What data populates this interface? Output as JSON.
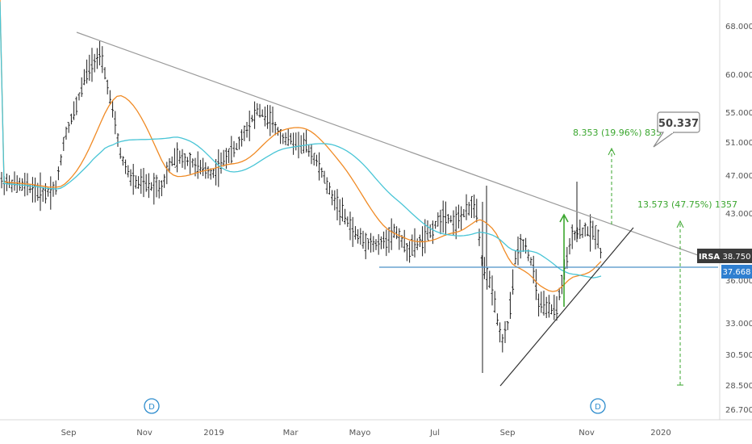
{
  "chart_data": {
    "type": "ohlc",
    "symbol": "IRSA",
    "price_axis": {
      "ticks": [
        "68.000",
        "60.000",
        "55.000",
        "51.000",
        "47.000",
        "43.000",
        "38.750",
        "37.668",
        "36.000",
        "33.000",
        "30.500",
        "28.500",
        "26.700"
      ],
      "tick_values": [
        68.0,
        60.0,
        55.0,
        51.0,
        47.0,
        43.0,
        36.0,
        33.0,
        30.5,
        28.5,
        26.7
      ],
      "range": [
        25.6,
        75.5
      ]
    },
    "time_axis": {
      "ticks": [
        "Sep",
        "Nov",
        "2019",
        "Mar",
        "Mayo",
        "Jul",
        "Sep",
        "Nov",
        "2020"
      ],
      "range": [
        "2018-08-01",
        "2020-03-15"
      ]
    },
    "last_price": {
      "label": "IRSA",
      "value": "38.750"
    },
    "support_level": {
      "value": "37.668"
    },
    "annotations": {
      "callout": "50.337",
      "measure_upper": "8.353 (19.96%) 8353",
      "measure_lower": "13.573 (47.75%) 1357",
      "event_marker": "D"
    },
    "series": [
      {
        "kind": "ohlc",
        "color": "#1e1e1e"
      },
      {
        "kind": "moving_average",
        "color": "#f08a24"
      },
      {
        "kind": "moving_average",
        "color": "#49c5d6"
      }
    ],
    "colors": {
      "bars": "#1e1e1e",
      "ma_fast": "#f08a24",
      "ma_slow": "#49c5d6",
      "trendline": "#9a9a9a",
      "support": "#4a90c8",
      "measure": "#3aa62e",
      "marker": "#2d8ccd",
      "price_tag": "#3a3a3a",
      "support_tag": "#2f7fd0"
    },
    "grid": false
  }
}
